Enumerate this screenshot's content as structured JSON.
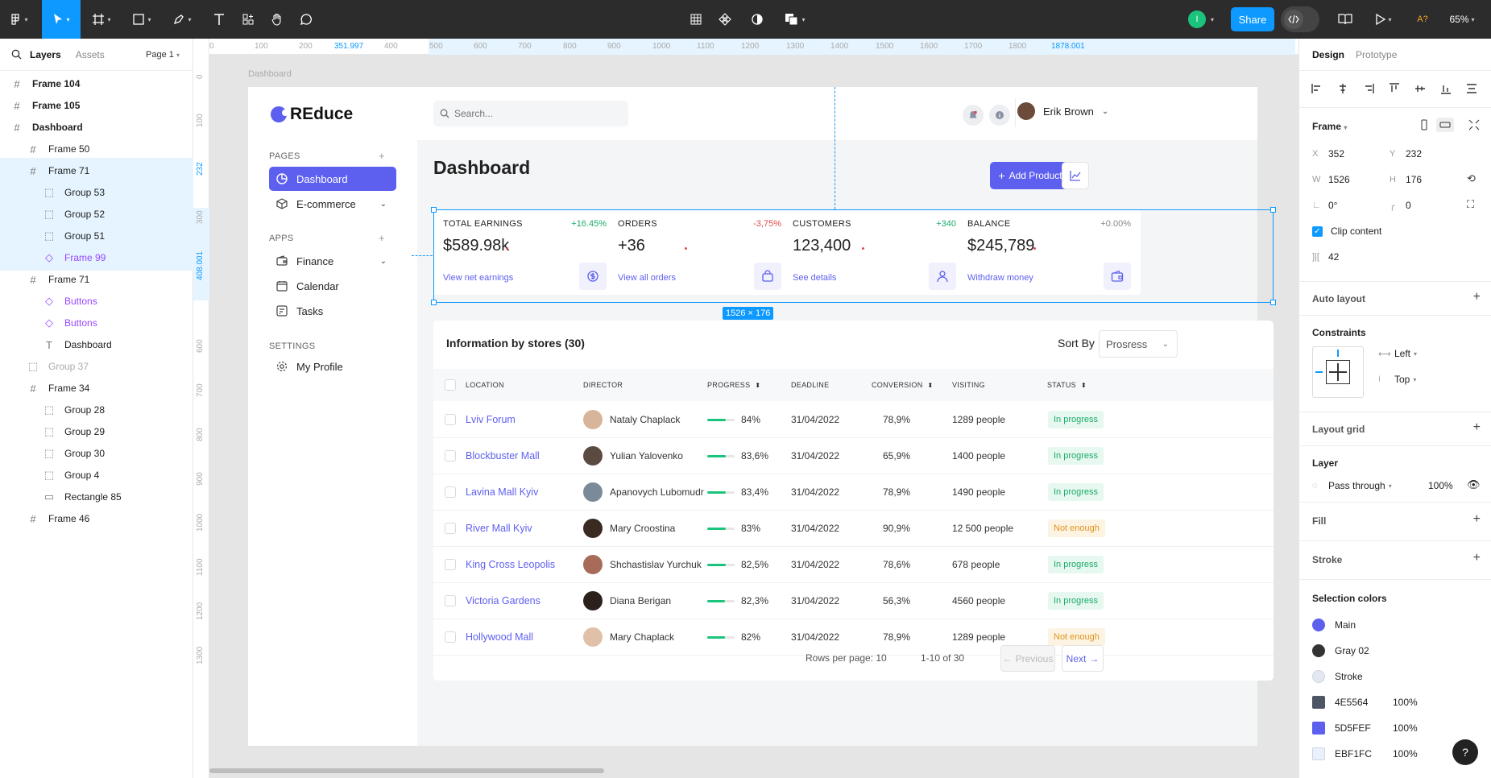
{
  "toolbar": {
    "share_label": "Share",
    "user_initial": "I",
    "a_label": "A?",
    "zoom": "65%"
  },
  "left_panel": {
    "tabs": [
      "Layers",
      "Assets"
    ],
    "page": "Page 1",
    "layers": [
      {
        "name": "Frame 104",
        "icon": "frame-icon",
        "bold": true
      },
      {
        "name": "Frame 105",
        "icon": "frame-icon",
        "bold": true
      },
      {
        "name": "Dashboard",
        "icon": "frame-icon",
        "bold": true
      },
      {
        "name": "Frame 50",
        "icon": "frame-icon"
      },
      {
        "name": "Frame 71",
        "icon": "frame-icon",
        "selected": true
      },
      {
        "name": "Group 53",
        "icon": "group-icon"
      },
      {
        "name": "Group 52",
        "icon": "group-icon"
      },
      {
        "name": "Group 51",
        "icon": "group-icon"
      },
      {
        "name": "Frame 99",
        "icon": "component-icon"
      },
      {
        "name": "Frame 71",
        "icon": "frame-icon"
      },
      {
        "name": "Buttons",
        "icon": "component-icon"
      },
      {
        "name": "Buttons",
        "icon": "component-icon"
      },
      {
        "name": "Dashboard",
        "icon": "text-icon"
      },
      {
        "name": "Group 37",
        "icon": "group-icon"
      },
      {
        "name": "Frame 34",
        "icon": "frame-icon"
      },
      {
        "name": "Group 28",
        "icon": "group-icon"
      },
      {
        "name": "Group 29",
        "icon": "group-icon"
      },
      {
        "name": "Group 30",
        "icon": "group-icon"
      },
      {
        "name": "Group 4",
        "icon": "group-icon"
      },
      {
        "name": "Rectangle 85",
        "icon": "rectangle-icon"
      },
      {
        "name": "Frame 46",
        "icon": "frame-icon"
      }
    ]
  },
  "rulers": {
    "h": [
      "0",
      "100",
      "200",
      "351.997",
      "400",
      "500",
      "600",
      "700",
      "800",
      "900",
      "1000",
      "1100",
      "1200",
      "1300",
      "1400",
      "1500",
      "1600",
      "1700",
      "1800",
      "1878.001"
    ],
    "v": [
      "0",
      "100",
      "232",
      "300",
      "408.001",
      "600",
      "700",
      "800",
      "900",
      "1000",
      "1100",
      "1200",
      "1300"
    ]
  },
  "canvas": {
    "frame_label": "Dashboard",
    "selection_size": "1526 × 176"
  },
  "app": {
    "logo": "REduce",
    "search_placeholder": "Search...",
    "user_name": "Erik Brown",
    "sections": {
      "pages": "PAGES",
      "apps": "APPS",
      "settings": "SETTINGS"
    },
    "nav": {
      "dashboard": "Dashboard",
      "ecommerce": "E-commerce",
      "finance": "Finance",
      "calendar": "Calendar",
      "tasks": "Tasks",
      "profile": "My Profile"
    },
    "page_title": "Dashboard",
    "add_product": "Add Product",
    "stats": [
      {
        "label": "TOTAL EARNINGS",
        "delta": "+16.45%",
        "delta_color": "#1bab6b",
        "value": "$589.98k",
        "link": "View net earnings",
        "icon": "dollar-icon"
      },
      {
        "label": "ORDERS",
        "delta": "-3,75%",
        "delta_color": "#e5484d",
        "value": "+36",
        "link": "View all orders",
        "icon": "bag-icon"
      },
      {
        "label": "CUSTOMERS",
        "delta": "+340",
        "delta_color": "#1bab6b",
        "value": "123,400",
        "link": "See details",
        "icon": "user-icon"
      },
      {
        "label": "BALANCE",
        "delta": "+0.00%",
        "delta_color": "#888888",
        "value": "$245,789",
        "link": "Withdraw money",
        "icon": "wallet-icon"
      }
    ],
    "table": {
      "title": "Information by stores (30)",
      "sort_label": "Sort By",
      "sort_value": "Prosress",
      "headers": [
        "LOCATION",
        "DIRECTOR",
        "PROGRESS",
        "DEADLINE",
        "CONVERSION",
        "VISITING",
        "STATUS"
      ],
      "rows": [
        {
          "location": "Lviv Forum",
          "director": "Nataly Chaplack",
          "progress": "84%",
          "progress_value": 0.84,
          "deadline": "31/04/2022",
          "conversion": "78,9%",
          "visiting": "1289 people",
          "status": "In progress",
          "status_kind": "ok",
          "avatar": "#d8b59a"
        },
        {
          "location": "Blockbuster Mall",
          "director": "Yulian Yalovenko",
          "progress": "83,6%",
          "progress_value": 0.836,
          "deadline": "31/04/2022",
          "conversion": "65,9%",
          "visiting": "1400 people",
          "status": "In progress",
          "status_kind": "ok",
          "avatar": "#5b4a40"
        },
        {
          "location": "Lavina Mall Kyiv",
          "director": "Apanovych Lubomudr",
          "progress": "83,4%",
          "progress_value": 0.834,
          "deadline": "31/04/2022",
          "conversion": "78,9%",
          "visiting": "1490 people",
          "status": "In progress",
          "status_kind": "ok",
          "avatar": "#7b8a99"
        },
        {
          "location": "River Mall Kyiv",
          "director": "Mary Croostina",
          "progress": "83%",
          "progress_value": 0.83,
          "deadline": "31/04/2022",
          "conversion": "90,9%",
          "visiting": "12 500 people",
          "status": "Not enough",
          "status_kind": "warn",
          "avatar": "#3a2a22"
        },
        {
          "location": "King Cross Leopolis",
          "director": "Shchastislav Yurchuk",
          "progress": "82,5%",
          "progress_value": 0.825,
          "deadline": "31/04/2022",
          "conversion": "78,6%",
          "visiting": "678 people",
          "status": "In progress",
          "status_kind": "ok",
          "avatar": "#a86b5a"
        },
        {
          "location": "Victoria Gardens",
          "director": "Diana Berigan",
          "progress": "82,3%",
          "progress_value": 0.823,
          "deadline": "31/04/2022",
          "conversion": "56,3%",
          "visiting": "4560 people",
          "status": "In progress",
          "status_kind": "ok",
          "avatar": "#2b201c"
        },
        {
          "location": "Hollywood Mall",
          "director": "Mary Chaplack",
          "progress": "82%",
          "progress_value": 0.82,
          "deadline": "31/04/2022",
          "conversion": "78,9%",
          "visiting": "1289 people",
          "status": "Not enough",
          "status_kind": "warn",
          "avatar": "#e0c0a8"
        }
      ],
      "rows_per_page": "Rows per page: 10",
      "range": "1-10 of 30",
      "previous": "Previous",
      "next": "Next"
    }
  },
  "right_panel": {
    "tabs": [
      "Design",
      "Prototype"
    ],
    "frame_label": "Frame",
    "x": "352",
    "y": "232",
    "w": "1526",
    "h": "176",
    "rotation": "0°",
    "radius": "0",
    "clip_content": "Clip content",
    "spacing": "42",
    "auto_layout": "Auto layout",
    "constraints": "Constraints",
    "constraint_h": "Left",
    "constraint_v": "Top",
    "layout_grid": "Layout grid",
    "layer": "Layer",
    "blend": "Pass through",
    "opacity": "100%",
    "fill": "Fill",
    "stroke": "Stroke",
    "selection_colors": "Selection colors",
    "colors": [
      {
        "name": "Main",
        "hex": "#5d5fef",
        "shape": "circle"
      },
      {
        "name": "Gray 02",
        "hex": "#333333",
        "shape": "circle"
      },
      {
        "name": "Stroke",
        "hex": "#e3e8f0",
        "shape": "circle"
      },
      {
        "name": "4E5564",
        "hex": "#4e5564",
        "shape": "square",
        "opacity": "100%"
      },
      {
        "name": "5D5FEF",
        "hex": "#5d5fef",
        "shape": "square",
        "opacity": "100%"
      },
      {
        "name": "EBF1FC",
        "hex": "#ebf1fc",
        "shape": "square",
        "opacity": "100%"
      }
    ]
  }
}
